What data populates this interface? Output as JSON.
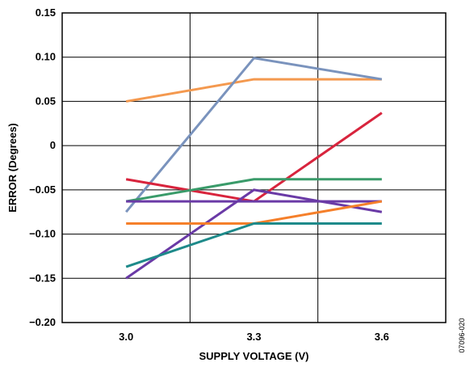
{
  "chart_data": {
    "type": "line",
    "xlabel": "SUPPLY VOLTAGE (V)",
    "ylabel": "ERROR (Degrees)",
    "x": [
      3.0,
      3.3,
      3.6
    ],
    "x_tick_labels": [
      "3.0",
      "3.3",
      "3.6"
    ],
    "xlim": [
      2.85,
      3.75
    ],
    "ylim": [
      -0.2,
      0.15
    ],
    "y_ticks": [
      0.15,
      0.1,
      0.05,
      0,
      -0.05,
      -0.1,
      -0.15,
      -0.2
    ],
    "y_tick_labels": [
      "0.15",
      "0.10",
      "0.05",
      "0",
      "−0.05",
      "−0.10",
      "−0.15",
      "−0.20"
    ],
    "grid": true,
    "series": [
      {
        "color": "#f4994f",
        "values": [
          0.05,
          0.075,
          0.075
        ]
      },
      {
        "color": "#7a93bd",
        "values": [
          -0.075,
          0.099,
          0.075
        ]
      },
      {
        "color": "#d8243d",
        "values": [
          -0.038,
          -0.063,
          0.037
        ]
      },
      {
        "color": "#3a9b6a",
        "values": [
          -0.063,
          -0.038,
          -0.038
        ]
      },
      {
        "color": "#6a3aa6",
        "values": [
          -0.063,
          -0.063,
          -0.063
        ]
      },
      {
        "color": "#6a3aa6",
        "values": [
          -0.15,
          -0.05,
          -0.075
        ]
      },
      {
        "color": "#f57f2a",
        "values": [
          -0.088,
          -0.088,
          -0.063
        ]
      },
      {
        "color": "#1e8a8a",
        "values": [
          -0.137,
          -0.088,
          -0.088
        ]
      }
    ]
  },
  "figure_code": "07096-020"
}
